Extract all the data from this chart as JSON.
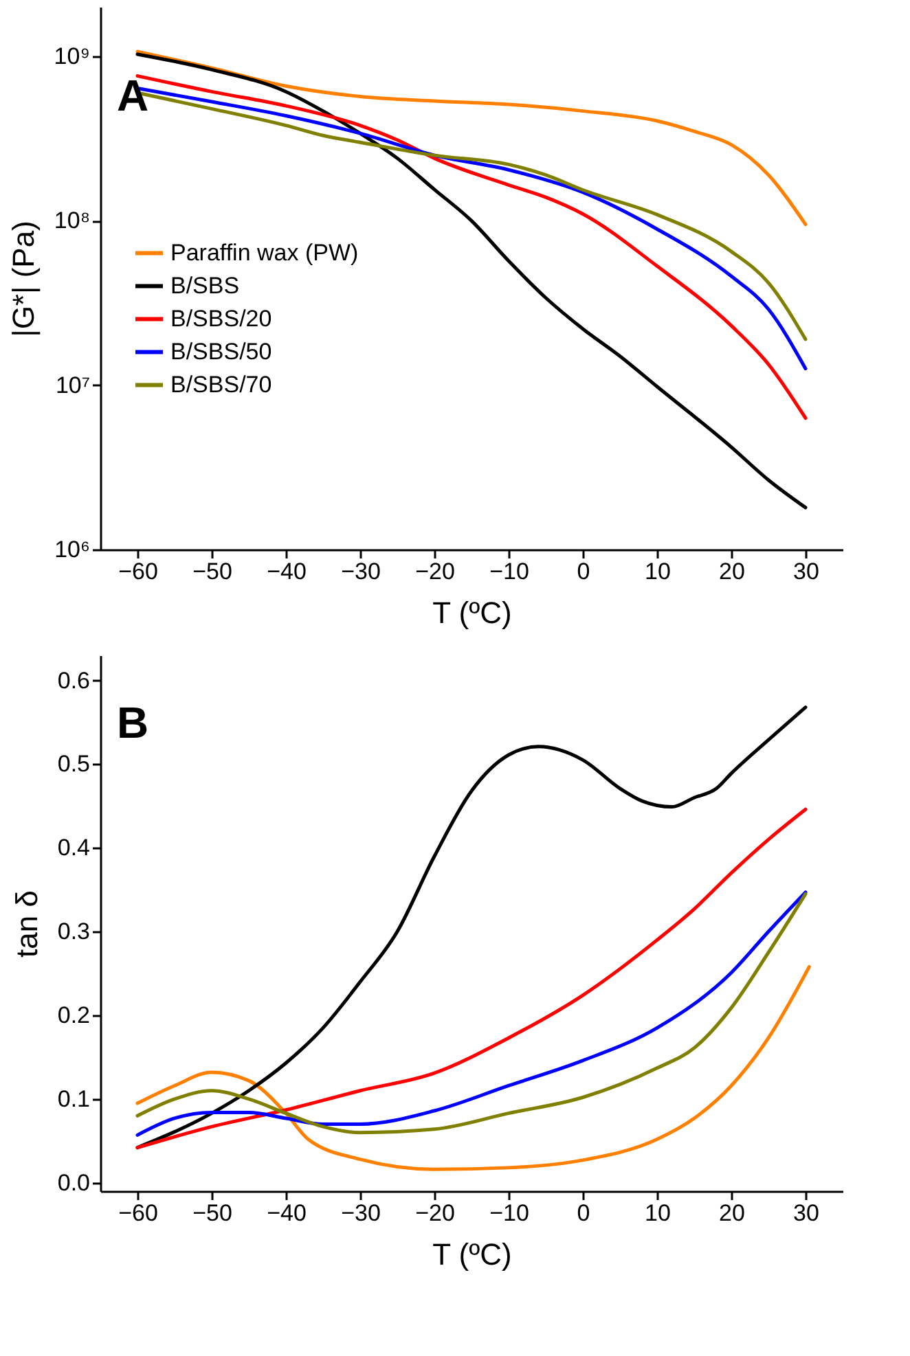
{
  "chart_data": [
    {
      "type": "line",
      "xlabel": "T (ºC)",
      "ylabel": "|G*| (Pa)",
      "log": "y",
      "legend": "left",
      "grid": false,
      "line_style": "solid",
      "marker": "none",
      "annotations": [
        "A"
      ],
      "xlim": [
        -65,
        35
      ],
      "xticks": [
        -60,
        -50,
        -40,
        -30,
        -20,
        -10,
        0,
        10,
        20,
        30
      ],
      "ylim": [
        1000000,
        2000000000
      ],
      "yticks": [
        {
          "value": 1000000,
          "label": "10⁶"
        },
        {
          "value": 10000000,
          "label": "10⁷"
        },
        {
          "value": 100000000,
          "label": "10⁸"
        },
        {
          "value": 1000000000,
          "label": "10⁹"
        }
      ],
      "series": [
        {
          "name": "Paraffin wax (PW)",
          "color": "#ff8000",
          "x": [
            -60,
            -50,
            -40,
            -30,
            -20,
            -10,
            0,
            10,
            15,
            20,
            25,
            30
          ],
          "values": [
            1070000000,
            850000000,
            660000000,
            570000000,
            535000000,
            510000000,
            465000000,
            405000000,
            350000000,
            290000000,
            190000000,
            95000000
          ]
        },
        {
          "name": "B/SBS",
          "color": "#000000",
          "x": [
            -60,
            -50,
            -40,
            -35,
            -30,
            -25,
            -20,
            -15,
            -10,
            -5,
            0,
            5,
            10,
            20,
            25,
            30
          ],
          "values": [
            1030000000,
            830000000,
            610000000,
            465000000,
            340000000,
            240000000,
            155000000,
            100000000,
            57000000,
            34000000,
            22000000,
            15000000,
            9800000,
            4200000,
            2650000,
            1800000
          ]
        },
        {
          "name": "B/SBS/20",
          "color": "#ff0000",
          "x": [
            -60,
            -50,
            -40,
            -30,
            -25,
            -20,
            -10,
            -5,
            0,
            10,
            20,
            25,
            30
          ],
          "values": [
            760000000,
            610000000,
            500000000,
            380000000,
            310000000,
            240000000,
            165000000,
            139000000,
            110000000,
            53000000,
            23000000,
            13400000,
            6300000
          ]
        },
        {
          "name": "B/SBS/50",
          "color": "#0000ff",
          "x": [
            -60,
            -50,
            -40,
            -30,
            -20,
            -10,
            0,
            10,
            20,
            25,
            30
          ],
          "values": [
            640000000,
            530000000,
            435000000,
            340000000,
            250000000,
            204000000,
            149000000,
            89000000,
            46000000,
            29000000,
            12600000
          ]
        },
        {
          "name": "B/SBS/70",
          "color": "#808000",
          "x": [
            -60,
            -50,
            -40,
            -35,
            -30,
            -20,
            -10,
            -5,
            0,
            10,
            20,
            25,
            30
          ],
          "values": [
            600000000,
            480000000,
            380000000,
            330000000,
            300000000,
            250000000,
            220000000,
            190000000,
            154000000,
            109000000,
            65000000,
            42000000,
            19000000
          ]
        }
      ]
    },
    {
      "type": "line",
      "xlabel": "T (ºC)",
      "ylabel": "tan δ",
      "legend": "top left",
      "grid": false,
      "line_style": "solid",
      "marker": "none",
      "annotations": [
        "B"
      ],
      "xlim": [
        -65,
        35
      ],
      "xticks": [
        -60,
        -50,
        -40,
        -30,
        -20,
        -10,
        0,
        10,
        20,
        30
      ],
      "ylim": [
        -0.01,
        0.63
      ],
      "yticks": [
        {
          "value": 0,
          "label": "0.0"
        },
        0.1,
        0.2,
        0.3,
        0.4,
        0.5,
        0.6
      ],
      "series": [
        {
          "name": "Paraffin wax (PW)",
          "color": "#ff8000",
          "x": [
            -60,
            -55,
            -50,
            -45,
            -40,
            -37,
            -30,
            -20,
            -10,
            0,
            10,
            15,
            20,
            25,
            30.5
          ],
          "values": [
            0.095,
            0.116,
            0.132,
            0.122,
            0.083,
            0.052,
            0.028,
            0.016,
            0.018,
            0.027,
            0.052,
            0.077,
            0.116,
            0.173,
            0.258
          ]
        },
        {
          "name": "B/SBS",
          "color": "#000000",
          "x": [
            -60,
            -50,
            -45,
            -40,
            -35,
            -30,
            -25,
            -20,
            -15,
            -10,
            -6,
            0,
            5,
            8,
            12,
            15,
            18,
            20,
            25,
            30
          ],
          "values": [
            0.042,
            0.083,
            0.11,
            0.143,
            0.185,
            0.24,
            0.3,
            0.39,
            0.468,
            0.511,
            0.521,
            0.505,
            0.471,
            0.456,
            0.449,
            0.46,
            0.471,
            0.489,
            0.529,
            0.568
          ]
        },
        {
          "name": "B/SBS/20",
          "color": "#ff0000",
          "x": [
            -60,
            -50,
            -40,
            -30,
            -20,
            -10,
            0,
            10,
            15,
            20,
            25,
            30
          ],
          "values": [
            0.042,
            0.067,
            0.087,
            0.11,
            0.131,
            0.173,
            0.224,
            0.29,
            0.327,
            0.37,
            0.41,
            0.446
          ]
        },
        {
          "name": "B/SBS/50",
          "color": "#0000ff",
          "x": [
            -60,
            -55,
            -50,
            -45,
            -40,
            -35,
            -30,
            -20,
            -10,
            0,
            10,
            20,
            25,
            30
          ],
          "values": [
            0.057,
            0.077,
            0.084,
            0.084,
            0.077,
            0.07,
            0.07,
            0.086,
            0.116,
            0.146,
            0.185,
            0.251,
            0.3,
            0.347
          ]
        },
        {
          "name": "B/SBS/70",
          "color": "#808000",
          "x": [
            -60,
            -55,
            -50,
            -45,
            -40,
            -35,
            -30,
            -20,
            -10,
            0,
            10,
            15,
            20,
            25,
            30
          ],
          "values": [
            0.08,
            0.1,
            0.11,
            0.1,
            0.083,
            0.067,
            0.06,
            0.064,
            0.083,
            0.102,
            0.137,
            0.161,
            0.209,
            0.275,
            0.345
          ]
        }
      ]
    }
  ]
}
